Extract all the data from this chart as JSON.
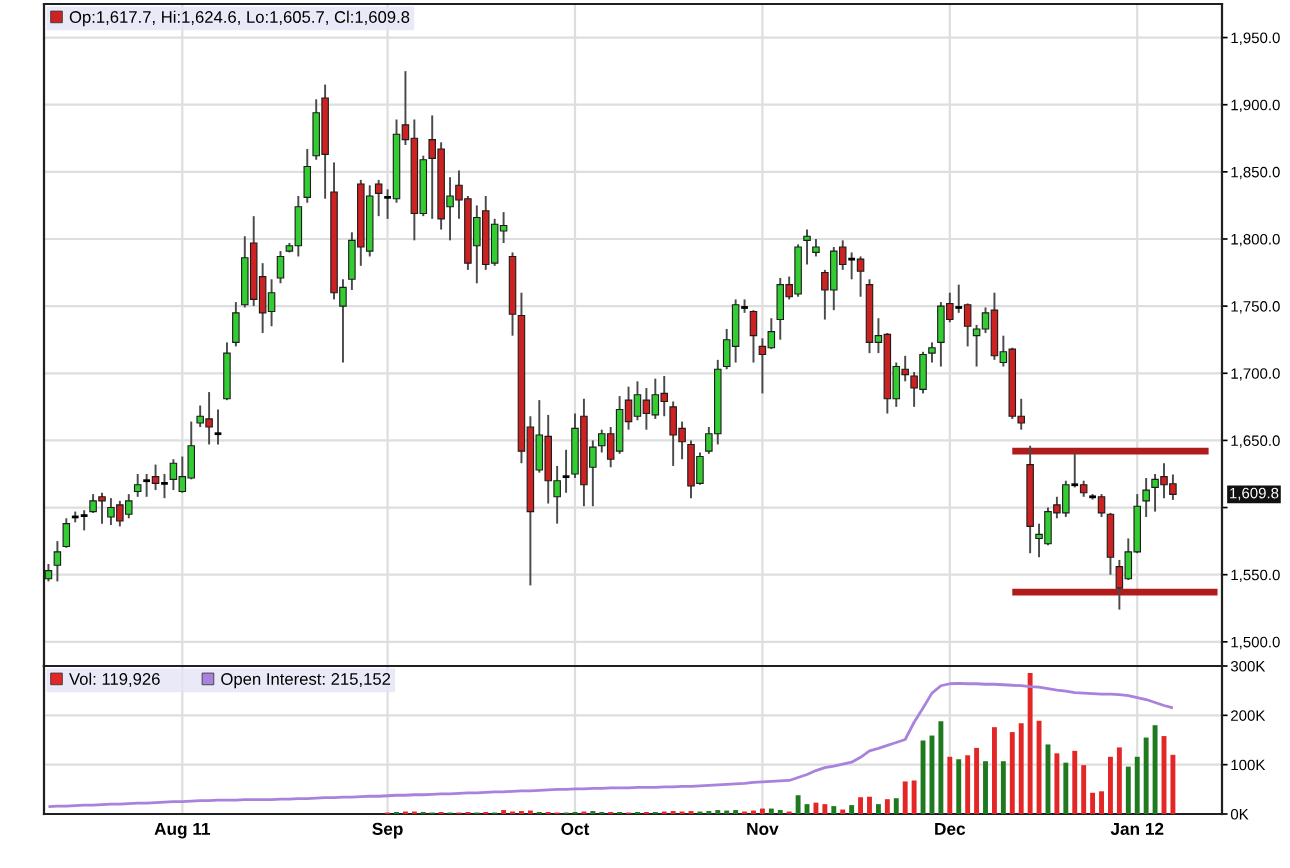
{
  "chart_data": [
    {
      "type": "candlestick",
      "categories": [
        null,
        null,
        null,
        null,
        null,
        null,
        null,
        null,
        null,
        null,
        null,
        null,
        null,
        null,
        null,
        null,
        null,
        null,
        null,
        null,
        null,
        null,
        null,
        null,
        null,
        null,
        null,
        null,
        null,
        null,
        null,
        null,
        null,
        null,
        null,
        null,
        null,
        null,
        null,
        null,
        null,
        null,
        null,
        null,
        null,
        null,
        null,
        null,
        null,
        null,
        null,
        null,
        null,
        null,
        null,
        null,
        null,
        null,
        null,
        null,
        null,
        null,
        null,
        null,
        null,
        null,
        null,
        null,
        null,
        null,
        null,
        null,
        null,
        null,
        null,
        null,
        null,
        null,
        null,
        null,
        null,
        null,
        null,
        null,
        null,
        null,
        null,
        null,
        null,
        null,
        null,
        null,
        null,
        null,
        null,
        null,
        null,
        null,
        null,
        null,
        null,
        null,
        null,
        null,
        null,
        null,
        null,
        null,
        null,
        null,
        null,
        null,
        null,
        null,
        null,
        null,
        null,
        null,
        null,
        null,
        null,
        null,
        null,
        null,
        null,
        null,
        null,
        null,
        null,
        null,
        null,
        null
      ],
      "series": [
        {
          "name": "Op:1,617.7, Hi:1,624.6, Lo:1,605.7, Cl:1,609.8",
          "color": "#cc2222",
          "ohlc": [
            [
              1547,
              1558,
              1545,
              1553
            ],
            [
              1557,
              1575,
              1545,
              1567
            ],
            [
              1571,
              1592,
              1570,
              1588
            ],
            [
              1593,
              1597,
              1589,
              1593
            ],
            [
              1594,
              1598,
              1583,
              1594
            ],
            [
              1597,
              1610,
              1596,
              1605
            ],
            [
              1608,
              1611,
              1588,
              1605
            ],
            [
              1593,
              1607,
              1587,
              1600
            ],
            [
              1602,
              1605,
              1586,
              1590
            ],
            [
              1595,
              1610,
              1592,
              1605
            ],
            [
              1612,
              1625,
              1608,
              1617
            ],
            [
              1620,
              1625,
              1608,
              1620
            ],
            [
              1623,
              1632,
              1613,
              1618
            ],
            [
              1618,
              1625,
              1607,
              1618
            ],
            [
              1621,
              1636,
              1613,
              1633
            ],
            [
              1612,
              1638,
              1611,
              1623
            ],
            [
              1622,
              1664,
              1621,
              1646
            ],
            [
              1663,
              1676,
              1660,
              1668
            ],
            [
              1666,
              1686,
              1647,
              1660
            ],
            [
              1655,
              1673,
              1647,
              1655
            ],
            [
              1681,
              1723,
              1680,
              1715
            ],
            [
              1723,
              1753,
              1720,
              1745
            ],
            [
              1751,
              1802,
              1749,
              1786
            ],
            [
              1797,
              1817,
              1750,
              1755
            ],
            [
              1772,
              1782,
              1730,
              1745
            ],
            [
              1746,
              1770,
              1735,
              1760
            ],
            [
              1771,
              1791,
              1767,
              1787
            ],
            [
              1791,
              1797,
              1790,
              1795
            ],
            [
              1795,
              1832,
              1787,
              1824
            ],
            [
              1831,
              1867,
              1827,
              1854
            ],
            [
              1862,
              1904,
              1859,
              1894
            ],
            [
              1905,
              1915,
              1830,
              1863
            ],
            [
              1835,
              1857,
              1755,
              1760
            ],
            [
              1750,
              1770,
              1708,
              1764
            ],
            [
              1770,
              1805,
              1762,
              1799
            ],
            [
              1841,
              1844,
              1780,
              1794
            ],
            [
              1791,
              1840,
              1787,
              1832
            ],
            [
              1841,
              1844,
              1817,
              1834
            ],
            [
              1831,
              1837,
              1815,
              1831
            ],
            [
              1830,
              1889,
              1827,
              1878
            ],
            [
              1885,
              1925,
              1870,
              1874
            ],
            [
              1875,
              1889,
              1799,
              1819
            ],
            [
              1819,
              1862,
              1817,
              1859
            ],
            [
              1874,
              1892,
              1815,
              1860
            ],
            [
              1867,
              1872,
              1807,
              1815
            ],
            [
              1824,
              1846,
              1799,
              1832
            ],
            [
              1840,
              1851,
              1815,
              1829
            ],
            [
              1830,
              1832,
              1777,
              1782
            ],
            [
              1795,
              1825,
              1767,
              1816
            ],
            [
              1821,
              1832,
              1777,
              1781
            ],
            [
              1782,
              1815,
              1780,
              1811
            ],
            [
              1806,
              1820,
              1797,
              1810
            ],
            [
              1787,
              1790,
              1728,
              1744
            ],
            [
              1743,
              1760,
              1633,
              1642
            ],
            [
              1660,
              1668,
              1542,
              1597
            ],
            [
              1628,
              1680,
              1626,
              1654
            ],
            [
              1653,
              1669,
              1603,
              1620
            ],
            [
              1608,
              1631,
              1588,
              1620
            ],
            [
              1623,
              1643,
              1611,
              1623
            ],
            [
              1625,
              1670,
              1622,
              1659
            ],
            [
              1668,
              1681,
              1601,
              1617
            ],
            [
              1630,
              1650,
              1601,
              1645
            ],
            [
              1646,
              1658,
              1641,
              1655
            ],
            [
              1655,
              1660,
              1630,
              1636
            ],
            [
              1642,
              1683,
              1640,
              1673
            ],
            [
              1680,
              1690,
              1658,
              1664
            ],
            [
              1668,
              1694,
              1665,
              1684
            ],
            [
              1680,
              1689,
              1658,
              1670
            ],
            [
              1669,
              1696,
              1666,
              1684
            ],
            [
              1685,
              1698,
              1668,
              1679
            ],
            [
              1675,
              1679,
              1631,
              1654
            ],
            [
              1659,
              1664,
              1636,
              1649
            ],
            [
              1647,
              1650,
              1607,
              1616
            ],
            [
              1618,
              1641,
              1617,
              1638
            ],
            [
              1642,
              1660,
              1640,
              1655
            ],
            [
              1655,
              1710,
              1647,
              1703
            ],
            [
              1705,
              1733,
              1703,
              1725
            ],
            [
              1720,
              1755,
              1708,
              1751
            ],
            [
              1749,
              1755,
              1745,
              1749
            ],
            [
              1746,
              1747,
              1708,
              1728
            ],
            [
              1720,
              1726,
              1685,
              1714
            ],
            [
              1719,
              1741,
              1718,
              1731
            ],
            [
              1740,
              1771,
              1725,
              1766
            ],
            [
              1766,
              1772,
              1755,
              1757
            ],
            [
              1759,
              1796,
              1757,
              1794
            ],
            [
              1799,
              1807,
              1781,
              1802
            ],
            [
              1790,
              1800,
              1787,
              1794
            ],
            [
              1775,
              1777,
              1740,
              1762
            ],
            [
              1762,
              1794,
              1747,
              1791
            ],
            [
              1794,
              1799,
              1777,
              1781
            ],
            [
              1785,
              1790,
              1770,
              1785
            ],
            [
              1785,
              1787,
              1757,
              1776
            ],
            [
              1766,
              1770,
              1715,
              1723
            ],
            [
              1723,
              1741,
              1715,
              1728
            ],
            [
              1729,
              1730,
              1670,
              1681
            ],
            [
              1681,
              1708,
              1675,
              1705
            ],
            [
              1703,
              1713,
              1694,
              1699
            ],
            [
              1698,
              1701,
              1675,
              1689
            ],
            [
              1688,
              1716,
              1685,
              1714
            ],
            [
              1715,
              1723,
              1708,
              1719
            ],
            [
              1723,
              1753,
              1705,
              1750
            ],
            [
              1752,
              1760,
              1738,
              1740
            ],
            [
              1749,
              1766,
              1745,
              1749
            ],
            [
              1751,
              1752,
              1720,
              1735
            ],
            [
              1728,
              1736,
              1705,
              1733
            ],
            [
              1733,
              1749,
              1730,
              1745
            ],
            [
              1747,
              1760,
              1710,
              1713
            ],
            [
              1708,
              1728,
              1705,
              1716
            ],
            [
              1718,
              1719,
              1666,
              1668
            ],
            [
              1668,
              1681,
              1658,
              1663
            ],
            [
              1632,
              1646,
              1566,
              1586
            ],
            [
              1577,
              1588,
              1563,
              1580
            ],
            [
              1573,
              1600,
              1572,
              1597
            ],
            [
              1602,
              1608,
              1592,
              1596
            ],
            [
              1596,
              1620,
              1593,
              1617
            ],
            [
              1617,
              1641,
              1615,
              1617
            ],
            [
              1617,
              1620,
              1608,
              1611
            ],
            [
              1608,
              1610,
              1606,
              1608
            ],
            [
              1608,
              1610,
              1593,
              1596
            ],
            [
              1595,
              1596,
              1550,
              1563
            ],
            [
              1556,
              1561,
              1524,
              1540
            ],
            [
              1547,
              1577,
              1546,
              1567
            ],
            [
              1567,
              1610,
              1566,
              1601
            ],
            [
              1605,
              1622,
              1593,
              1613
            ],
            [
              1615,
              1625,
              1597,
              1621
            ],
            [
              1623,
              1633,
              1607,
              1617
            ],
            [
              1617.7,
              1624.6,
              1605.7,
              1609.8
            ],
            null,
            null,
            null,
            null,
            null
          ],
          "colors": [
            "#33cc33",
            "#33cc33",
            "#33cc33",
            "#000000",
            "#000000",
            "#33cc33",
            "#cc2222",
            "#33cc33",
            "#cc2222",
            "#33cc33",
            "#33cc33",
            "#000000",
            "#cc2222",
            "#000000",
            "#33cc33",
            "#33cc33",
            "#33cc33",
            "#33cc33",
            "#cc2222",
            "#000000",
            "#33cc33",
            "#33cc33",
            "#33cc33",
            "#cc2222",
            "#cc2222",
            "#33cc33",
            "#33cc33",
            "#33cc33",
            "#33cc33",
            "#33cc33",
            "#33cc33",
            "#cc2222",
            "#cc2222",
            "#33cc33",
            "#33cc33",
            "#cc2222",
            "#33cc33",
            "#cc2222",
            "#000000",
            "#33cc33",
            "#cc2222",
            "#cc2222",
            "#33cc33",
            "#cc2222",
            "#cc2222",
            "#33cc33",
            "#cc2222",
            "#cc2222",
            "#33cc33",
            "#cc2222",
            "#33cc33",
            "#33cc33",
            "#cc2222",
            "#cc2222",
            "#cc2222",
            "#33cc33",
            "#cc2222",
            "#33cc33",
            "#000000",
            "#33cc33",
            "#cc2222",
            "#33cc33",
            "#33cc33",
            "#cc2222",
            "#33cc33",
            "#cc2222",
            "#33cc33",
            "#cc2222",
            "#33cc33",
            "#cc2222",
            "#cc2222",
            "#cc2222",
            "#cc2222",
            "#33cc33",
            "#33cc33",
            "#33cc33",
            "#33cc33",
            "#33cc33",
            "#000000",
            "#cc2222",
            "#cc2222",
            "#33cc33",
            "#33cc33",
            "#cc2222",
            "#33cc33",
            "#33cc33",
            "#33cc33",
            "#cc2222",
            "#33cc33",
            "#cc2222",
            "#000000",
            "#cc2222",
            "#cc2222",
            "#33cc33",
            "#cc2222",
            "#33cc33",
            "#cc2222",
            "#cc2222",
            "#33cc33",
            "#33cc33",
            "#33cc33",
            "#cc2222",
            "#000000",
            "#cc2222",
            "#33cc33",
            "#33cc33",
            "#cc2222",
            "#33cc33",
            "#cc2222",
            "#cc2222",
            "#cc2222",
            "#33cc33",
            "#33cc33",
            "#cc2222",
            "#33cc33",
            "#000000",
            "#cc2222",
            "#000000",
            "#cc2222",
            "#cc2222",
            "#cc2222",
            "#33cc33",
            "#33cc33",
            "#33cc33",
            "#33cc33",
            "#cc2222",
            "#cc2222",
            null,
            null,
            null,
            null,
            null
          ]
        },
        {
          "type": "line",
          "color": "#b01c1c",
          "values": [
            null,
            null,
            null,
            null,
            null,
            null,
            null,
            null,
            null,
            null,
            null,
            null,
            null,
            null,
            null,
            null,
            null,
            null,
            null,
            null,
            null,
            null,
            null,
            null,
            null,
            null,
            null,
            null,
            null,
            null,
            null,
            null,
            null,
            null,
            null,
            null,
            null,
            null,
            null,
            null,
            null,
            null,
            null,
            null,
            null,
            null,
            null,
            null,
            null,
            null,
            null,
            null,
            null,
            null,
            null,
            null,
            null,
            null,
            null,
            null,
            null,
            null,
            null,
            null,
            null,
            null,
            null,
            null,
            null,
            null,
            null,
            null,
            null,
            null,
            null,
            null,
            null,
            null,
            null,
            null,
            null,
            null,
            null,
            null,
            null,
            null,
            null,
            null,
            null,
            null,
            null,
            null,
            null,
            null,
            null,
            null,
            null,
            null,
            null,
            null,
            null,
            null,
            null,
            null,
            null,
            null,
            null,
            null,
            1642,
            1642,
            1642,
            1642,
            1642,
            1642,
            1642,
            1642,
            1642,
            1642,
            1642,
            1642,
            1642,
            1642,
            1642,
            1642,
            1642,
            1642,
            1642,
            1642,
            1642,
            1642,
            1642,
            null
          ]
        },
        {
          "type": "line",
          "color": "#b01c1c",
          "values": [
            null,
            null,
            null,
            null,
            null,
            null,
            null,
            null,
            null,
            null,
            null,
            null,
            null,
            null,
            null,
            null,
            null,
            null,
            null,
            null,
            null,
            null,
            null,
            null,
            null,
            null,
            null,
            null,
            null,
            null,
            null,
            null,
            null,
            null,
            null,
            null,
            null,
            null,
            null,
            null,
            null,
            null,
            null,
            null,
            null,
            null,
            null,
            null,
            null,
            null,
            null,
            null,
            null,
            null,
            null,
            null,
            null,
            null,
            null,
            null,
            null,
            null,
            null,
            null,
            null,
            null,
            null,
            null,
            null,
            null,
            null,
            null,
            null,
            null,
            null,
            null,
            null,
            null,
            null,
            null,
            null,
            null,
            null,
            null,
            null,
            null,
            null,
            null,
            null,
            null,
            null,
            null,
            null,
            null,
            null,
            null,
            null,
            null,
            null,
            null,
            null,
            null,
            null,
            null,
            null,
            null,
            null,
            null,
            1537,
            1537,
            1537,
            1537,
            1537,
            1537,
            1537,
            1537,
            1537,
            1537,
            1537,
            1537,
            1537,
            1537,
            1537,
            1537,
            1537,
            1537,
            1537,
            1537,
            1537,
            1537,
            1537,
            1537
          ]
        }
      ],
      "ylim": [
        1482,
        1975
      ],
      "yticks": [
        {
          "value": 1500,
          "label": "1,500.0"
        },
        {
          "value": 1550,
          "label": "1,550.0"
        },
        {
          "value": 1600,
          "label": null
        },
        {
          "value": 1650,
          "label": "1,650.0"
        },
        {
          "value": 1700,
          "label": "1,700.0"
        },
        {
          "value": 1750,
          "label": "1,750.0"
        },
        {
          "value": 1800,
          "label": "1,800.0"
        },
        {
          "value": 1850,
          "label": "1,850.0"
        },
        {
          "value": 1900,
          "label": "1,900.0"
        },
        {
          "value": 1950,
          "label": "1,950.0"
        }
      ],
      "annotations": [
        {
          "text": "1,609.8",
          "y": 1609.8
        }
      ],
      "tick_labels": "y",
      "grid": true,
      "legend": "top left"
    },
    {
      "type": "bar",
      "categories": [
        null,
        null,
        null,
        null,
        null,
        null,
        null,
        null,
        null,
        null,
        null,
        null,
        null,
        null,
        null,
        "Aug 11",
        null,
        null,
        null,
        null,
        null,
        null,
        null,
        null,
        null,
        null,
        null,
        null,
        null,
        null,
        null,
        null,
        null,
        null,
        null,
        null,
        null,
        null,
        "Sep",
        null,
        null,
        null,
        null,
        null,
        null,
        null,
        null,
        null,
        null,
        null,
        null,
        null,
        null,
        null,
        null,
        null,
        null,
        null,
        null,
        "Oct",
        null,
        null,
        null,
        null,
        null,
        null,
        null,
        null,
        null,
        null,
        null,
        null,
        null,
        null,
        null,
        null,
        null,
        null,
        null,
        null,
        "Nov",
        null,
        null,
        null,
        null,
        null,
        null,
        null,
        null,
        null,
        null,
        null,
        null,
        null,
        null,
        null,
        null,
        null,
        null,
        null,
        null,
        "Dec",
        null,
        null,
        null,
        null,
        null,
        null,
        null,
        null,
        null,
        null,
        null,
        null,
        null,
        null,
        null,
        null,
        null,
        null,
        null,
        null,
        "Jan 12",
        null,
        null,
        null,
        null,
        null,
        null,
        null,
        null,
        null
      ],
      "series": [
        {
          "name": "Vol: 119,926",
          "color": "#e32626",
          "values": [
            null,
            null,
            null,
            null,
            null,
            null,
            null,
            null,
            null,
            null,
            null,
            null,
            null,
            null,
            null,
            null,
            null,
            null,
            null,
            null,
            null,
            null,
            null,
            null,
            null,
            null,
            null,
            null,
            null,
            null,
            null,
            null,
            null,
            null,
            null,
            null,
            null,
            null,
            3000,
            4000,
            5000,
            5000,
            4000,
            3000,
            4000,
            3000,
            3000,
            4000,
            3000,
            4000,
            3000,
            8000,
            5000,
            6000,
            7000,
            4000,
            4000,
            3000,
            3000,
            4000,
            5000,
            6000,
            4000,
            4000,
            4000,
            3000,
            4000,
            4000,
            4000,
            5000,
            6000,
            5000,
            6000,
            5000,
            6000,
            8000,
            7000,
            8000,
            5000,
            7000,
            11000,
            11000,
            8000,
            5000,
            38000,
            20000,
            23000,
            20000,
            16000,
            9000,
            18000,
            34000,
            35000,
            20000,
            30000,
            32000,
            66000,
            68000,
            149000,
            159000,
            188000,
            116000,
            111000,
            119000,
            134000,
            107000,
            176000,
            107000,
            166000,
            184000,
            286000,
            189000,
            141000,
            123000,
            104000,
            128000,
            99000,
            43000,
            46000,
            116000,
            135000,
            96000,
            116000,
            155000,
            180000,
            158000,
            119926,
            null,
            null,
            null,
            null,
            null
          ],
          "colors": [
            null,
            null,
            null,
            null,
            null,
            null,
            null,
            null,
            null,
            null,
            null,
            null,
            null,
            null,
            null,
            null,
            null,
            null,
            null,
            null,
            null,
            null,
            null,
            null,
            null,
            null,
            null,
            null,
            null,
            null,
            null,
            null,
            null,
            null,
            null,
            null,
            null,
            null,
            "#e32626",
            "#1f7a1f",
            "#e32626",
            "#e32626",
            "#1f7a1f",
            "#1f7a1f",
            "#e32626",
            "#1f7a1f",
            "#e32626",
            "#e32626",
            "#1f7a1f",
            "#e32626",
            "#1f7a1f",
            "#e32626",
            "#e32626",
            "#e32626",
            "#e32626",
            "#1f7a1f",
            "#e32626",
            "#e32626",
            "#1f7a1f",
            "#1f7a1f",
            "#e32626",
            "#1f7a1f",
            "#1f7a1f",
            "#e32626",
            "#1f7a1f",
            "#e32626",
            "#1f7a1f",
            "#e32626",
            "#1f7a1f",
            "#e32626",
            "#e32626",
            "#e32626",
            "#e32626",
            "#1f7a1f",
            "#1f7a1f",
            "#1f7a1f",
            "#1f7a1f",
            "#1f7a1f",
            "#e32626",
            "#e32626",
            "#e32626",
            "#1f7a1f",
            "#1f7a1f",
            "#e32626",
            "#1f7a1f",
            "#1f7a1f",
            "#e32626",
            "#e32626",
            "#1f7a1f",
            "#e32626",
            "#1f7a1f",
            "#e32626",
            "#e32626",
            "#1f7a1f",
            "#e32626",
            "#1f7a1f",
            "#e32626",
            "#e32626",
            "#1f7a1f",
            "#1f7a1f",
            "#1f7a1f",
            "#e32626",
            "#1f7a1f",
            "#e32626",
            "#e32626",
            "#1f7a1f",
            "#e32626",
            "#1f7a1f",
            "#e32626",
            "#e32626",
            "#e32626",
            "#e32626",
            "#1f7a1f",
            "#e32626",
            "#1f7a1f",
            "#e32626",
            "#e32626",
            "#e32626",
            "#e32626",
            "#e32626",
            "#e32626",
            "#1f7a1f",
            "#1f7a1f",
            "#1f7a1f",
            "#1f7a1f",
            "#e32626",
            "#e32626",
            null,
            null,
            null,
            null,
            null
          ]
        },
        {
          "type": "line",
          "name": "Open Interest: 215,152",
          "color": "#a982dc",
          "values": [
            15000,
            16000,
            16000,
            17000,
            18000,
            18000,
            19000,
            20000,
            20000,
            21000,
            22000,
            22000,
            23000,
            24000,
            25000,
            25000,
            26000,
            27000,
            27000,
            28000,
            28000,
            28000,
            29000,
            29000,
            29000,
            29000,
            30000,
            30000,
            31000,
            31000,
            32000,
            33000,
            33000,
            34000,
            34000,
            35000,
            36000,
            36000,
            37000,
            38000,
            38000,
            39000,
            39000,
            40000,
            41000,
            41000,
            42000,
            43000,
            43000,
            44000,
            45000,
            45000,
            46000,
            47000,
            47000,
            48000,
            49000,
            50000,
            50000,
            51000,
            51000,
            52000,
            52000,
            53000,
            53000,
            53000,
            54000,
            54000,
            54000,
            55000,
            55000,
            56000,
            56000,
            57000,
            58000,
            59000,
            60000,
            61000,
            62000,
            64000,
            65000,
            66000,
            67000,
            68000,
            74000,
            80000,
            88000,
            94000,
            97000,
            101000,
            105000,
            115000,
            128000,
            133000,
            139000,
            145000,
            151000,
            186000,
            215000,
            245000,
            260000,
            264000,
            265000,
            264000,
            264000,
            263000,
            263000,
            262000,
            261000,
            260000,
            258000,
            257000,
            254000,
            251000,
            249000,
            246000,
            245000,
            244000,
            243000,
            243000,
            242000,
            240000,
            236000,
            232000,
            226000,
            220000,
            215152,
            null,
            null,
            null,
            null,
            null
          ]
        }
      ],
      "ylim": [
        0,
        300000
      ],
      "yticks": [
        {
          "value": 0,
          "label": "0K"
        },
        {
          "value": 100000,
          "label": "100K"
        },
        {
          "value": 200000,
          "label": "200K"
        },
        {
          "value": 300000,
          "label": "300K"
        }
      ],
      "grid": true,
      "legend": "top left"
    }
  ]
}
